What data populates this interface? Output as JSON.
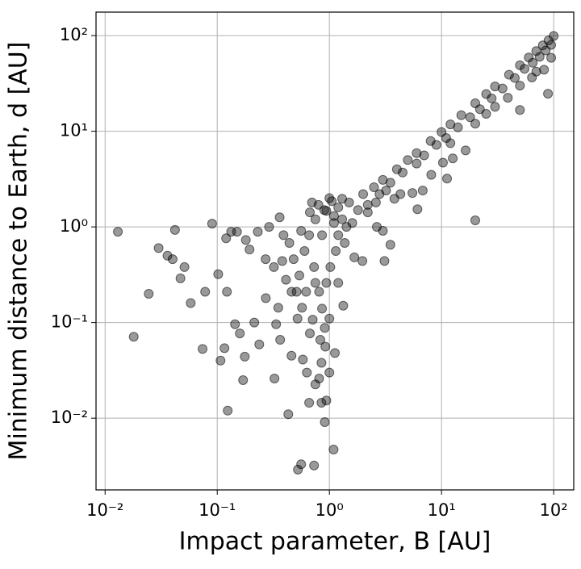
{
  "chart_data": {
    "type": "scatter",
    "xlabel": "Impact parameter, B [AU]",
    "ylabel": "Minimum distance to Earth, d [AU]",
    "xscale": "log",
    "yscale": "log",
    "grid": true,
    "color": "#000000",
    "xlim": [
      0.0083,
      151
    ],
    "ylim": [
      0.00178,
      176
    ],
    "xticks": [
      {
        "value": 0.01,
        "label": "10⁻²"
      },
      {
        "value": 0.1,
        "label": "10⁻¹"
      },
      {
        "value": 1,
        "label": "10⁰"
      },
      {
        "value": 10,
        "label": "10¹"
      },
      {
        "value": 100,
        "label": "10²"
      }
    ],
    "yticks": [
      {
        "value": 0.01,
        "label": "10⁻²"
      },
      {
        "value": 0.1,
        "label": "10⁻¹"
      },
      {
        "value": 1,
        "label": "10⁰"
      },
      {
        "value": 10,
        "label": "10¹"
      },
      {
        "value": 100,
        "label": "10²"
      }
    ],
    "x": [
      0.013,
      0.018,
      0.0245,
      0.03,
      0.036,
      0.04,
      0.042,
      0.047,
      0.051,
      0.058,
      0.074,
      0.078,
      0.09,
      0.102,
      0.107,
      0.116,
      0.124,
      0.122,
      0.133,
      0.144,
      0.159,
      0.17,
      0.176,
      0.194,
      0.214,
      0.237,
      0.271,
      0.324,
      0.335,
      0.364,
      0.43,
      0.459,
      0.524,
      0.56,
      0.58,
      0.63,
      0.66,
      0.73,
      0.75,
      0.81,
      0.85,
      0.91,
      0.94,
      1.0,
      1.09,
      1.12,
      0.92,
      0.85,
      0.23,
      0.29,
      0.36,
      0.39,
      0.44,
      0.48,
      0.54,
      0.6,
      0.66,
      0.73,
      0.81,
      0.86,
      0.91,
      0.71,
      0.57,
      0.51,
      0.41,
      0.32,
      0.27,
      0.18,
      0.15,
      0.12,
      0.38,
      0.46,
      0.62,
      0.75,
      0.94,
      1.02,
      1.14,
      1.37,
      1.67,
      1.97,
      1.33,
      1.2,
      1.0,
      0.83,
      0.67,
      0.52,
      0.35,
      0.56,
      0.75,
      0.94,
      0.67,
      1.1,
      0.86,
      1.2,
      1.42,
      1.05,
      1.3,
      2.2,
      2.65,
      3.0,
      3.5,
      3.1,
      5.5,
      6.1,
      6.8,
      8.1,
      11.2,
      10.3,
      12.6,
      16.4,
      20.0,
      25,
      39,
      50,
      64,
      89,
      95,
      82,
      4.3,
      3.8,
      1.2,
      1.5,
      2,
      2.5,
      3,
      4,
      5,
      6,
      8,
      10,
      12,
      15,
      20,
      25,
      30,
      40,
      50,
      60,
      70,
      80,
      90,
      100,
      1.8,
      2.2,
      2.8,
      3.5,
      4.5,
      6,
      7,
      9,
      11,
      14,
      18,
      22,
      28,
      35,
      45,
      55,
      65,
      75,
      85,
      95,
      1.3,
      1.1,
      0.9,
      0.8,
      1.0,
      0.7,
      1.6,
      2.6,
      3.2,
      12,
      20,
      30,
      50,
      70
    ],
    "y": [
      0.89,
      0.071,
      0.2,
      0.6,
      0.5,
      0.46,
      0.93,
      0.29,
      0.38,
      0.16,
      0.053,
      0.21,
      1.08,
      0.32,
      0.04,
      0.054,
      0.012,
      0.21,
      0.89,
      0.096,
      0.077,
      0.025,
      0.044,
      0.58,
      0.1,
      0.059,
      0.18,
      0.026,
      0.096,
      0.066,
      0.011,
      0.045,
      0.0029,
      0.0033,
      0.041,
      0.03,
      0.0145,
      0.0032,
      0.0226,
      0.026,
      0.0145,
      0.0091,
      0.0153,
      0.03,
      0.0047,
      0.048,
      0.056,
      0.038,
      0.89,
      1.0,
      1.26,
      0.82,
      0.68,
      0.46,
      0.31,
      0.56,
      0.82,
      0.38,
      0.21,
      0.14,
      0.088,
      0.107,
      0.143,
      0.21,
      0.28,
      0.38,
      0.46,
      0.73,
      0.89,
      0.76,
      0.44,
      0.21,
      0.21,
      0.26,
      0.26,
      0.38,
      0.56,
      0.68,
      0.48,
      0.44,
      0.15,
      0.26,
      0.11,
      0.066,
      0.077,
      0.11,
      0.143,
      0.91,
      1.2,
      1.47,
      1.42,
      1.1,
      0.82,
      0.82,
      1.0,
      1.86,
      1.97,
      1.42,
      1.0,
      0.91,
      0.65,
      0.44,
      2.26,
      1.53,
      2.4,
      3.5,
      3.2,
      4.7,
      5.2,
      6.3,
      1.17,
      15.2,
      22.4,
      16.7,
      36.5,
      24.7,
      58.6,
      44,
      2.2,
      1.97,
      1.6,
      1.8,
      2.2,
      2.6,
      3.1,
      4,
      5,
      5.9,
      7.9,
      9.8,
      11.8,
      14.7,
      19.6,
      24.5,
      29.4,
      39,
      49,
      59,
      69,
      79,
      89,
      99,
      1.5,
      1.7,
      2.2,
      2.9,
      3.7,
      4.6,
      5.6,
      7.2,
      8.5,
      11,
      14,
      17,
      22,
      28,
      36,
      45,
      52,
      60,
      70,
      80,
      1.2,
      1.3,
      1.5,
      1.7,
      2.0,
      1.8,
      1.1,
      1.8,
      2.4,
      7.5,
      12,
      18,
      30,
      42
    ]
  }
}
